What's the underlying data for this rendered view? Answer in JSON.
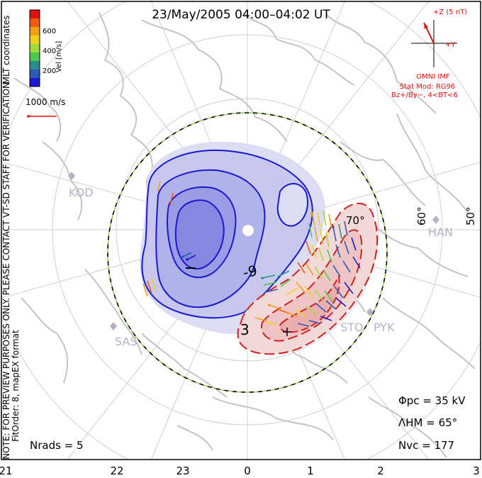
{
  "title": "23/May/2005 04:00–04:02 UT",
  "coord_label": "MLT coordinates",
  "colorbar": {
    "label": "Vel [m/s]",
    "ticks": [
      "600",
      "400",
      "200"
    ],
    "colors": [
      "#e01010",
      "#f05a14",
      "#f0a014",
      "#f0d21e",
      "#a0dc3c",
      "#50c850",
      "#2d8c8c",
      "#2d5ab4",
      "#1a1ad2"
    ]
  },
  "vector_scale": "1000 m/s",
  "imf": {
    "z_label": "+Z (5 nT)",
    "y_label": "+Y",
    "source": "OMNI IMF",
    "model": "Stat Mod: RG96",
    "conditions": "Bz+/By−, 4<BT<6"
  },
  "notes": {
    "preview": "NOTE: FOR PREVIEW PURPOSES ONLY. PLEASE CONTACT VT-SD STAFF FOR VERIFICATION.",
    "fit": "FitOrder: 8, mapEX format"
  },
  "lat_labels": [
    "70°",
    "60°",
    "50°"
  ],
  "contour_labels": [
    "-9",
    "3"
  ],
  "radars": [
    "KOD",
    "SAS",
    "STO",
    "PYK",
    "HAN"
  ],
  "mlt_ticks": [
    "21",
    "22",
    "23",
    "0",
    "1",
    "2",
    "3"
  ],
  "stats": {
    "phi": "Φpc = 35 kV",
    "lambda": "ΛHM = 65°",
    "nvc": "Nvc = 177",
    "nrads": "Nrads = 5"
  },
  "colors": {
    "negative_cell": "#3a3fd8",
    "positive_cell": "#d02020",
    "coast": "#c8c8c8",
    "hmb_green": "#90d050"
  }
}
